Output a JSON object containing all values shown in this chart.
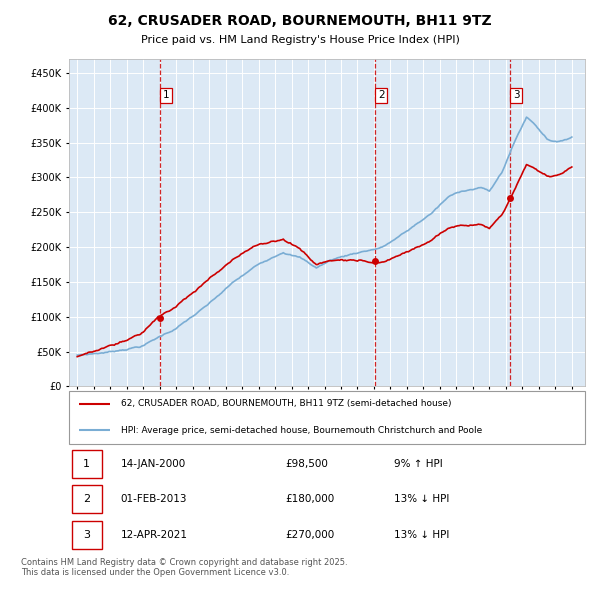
{
  "title": "62, CRUSADER ROAD, BOURNEMOUTH, BH11 9TZ",
  "subtitle": "Price paid vs. HM Land Registry's House Price Index (HPI)",
  "background_color": "#ffffff",
  "plot_bg_color": "#dce9f5",
  "grid_color": "#ffffff",
  "sale_dates_num": [
    2000.04,
    2013.08,
    2021.28
  ],
  "sale_prices": [
    98500,
    180000,
    270000
  ],
  "sale_labels": [
    "1",
    "2",
    "3"
  ],
  "sale_date_strings": [
    "14-JAN-2000",
    "01-FEB-2013",
    "12-APR-2021"
  ],
  "sale_price_strings": [
    "£98,500",
    "£180,000",
    "£270,000"
  ],
  "sale_hpi_strings": [
    "9% ↑ HPI",
    "13% ↓ HPI",
    "13% ↓ HPI"
  ],
  "hpi_line_color": "#7aadd4",
  "price_line_color": "#cc0000",
  "sale_marker_color": "#cc0000",
  "vline_color": "#cc0000",
  "legend1_label": "62, CRUSADER ROAD, BOURNEMOUTH, BH11 9TZ (semi-detached house)",
  "legend2_label": "HPI: Average price, semi-detached house, Bournemouth Christchurch and Poole",
  "footer": "Contains HM Land Registry data © Crown copyright and database right 2025.\nThis data is licensed under the Open Government Licence v3.0.",
  "ylim": [
    0,
    470000
  ],
  "yticks": [
    0,
    50000,
    100000,
    150000,
    200000,
    250000,
    300000,
    350000,
    400000,
    450000
  ],
  "xlim_start": 1994.5,
  "xlim_end": 2025.8,
  "xticks": [
    1995,
    1996,
    1997,
    1998,
    1999,
    2000,
    2001,
    2002,
    2003,
    2004,
    2005,
    2006,
    2007,
    2008,
    2009,
    2010,
    2011,
    2012,
    2013,
    2014,
    2015,
    2016,
    2017,
    2018,
    2019,
    2020,
    2021,
    2022,
    2023,
    2024,
    2025
  ],
  "hpi_data_years": [
    1995.0,
    1995.083,
    1995.167,
    1995.25,
    1995.333,
    1995.417,
    1995.5,
    1995.583,
    1995.667,
    1995.75,
    1995.833,
    1995.917,
    1996.0,
    1996.083,
    1996.167,
    1996.25,
    1996.333,
    1996.417,
    1996.5,
    1996.583,
    1996.667,
    1996.75,
    1996.833,
    1996.917,
    1997.0,
    1997.083,
    1997.167,
    1997.25,
    1997.333,
    1997.417,
    1997.5,
    1997.583,
    1997.667,
    1997.75,
    1997.833,
    1997.917,
    1998.0,
    1998.083,
    1998.167,
    1998.25,
    1998.333,
    1998.417,
    1998.5,
    1998.583,
    1998.667,
    1998.75,
    1998.833,
    1998.917,
    1999.0,
    1999.083,
    1999.167,
    1999.25,
    1999.333,
    1999.417,
    1999.5,
    1999.583,
    1999.667,
    1999.75,
    1999.833,
    1999.917,
    2000.0,
    2000.083,
    2000.167,
    2000.25,
    2000.333,
    2000.417,
    2000.5,
    2000.583,
    2000.667,
    2000.75,
    2000.833,
    2000.917,
    2001.0,
    2001.083,
    2001.167,
    2001.25,
    2001.333,
    2001.417,
    2001.5,
    2001.583,
    2001.667,
    2001.75,
    2001.833,
    2001.917,
    2002.0,
    2002.083,
    2002.167,
    2002.25,
    2002.333,
    2002.417,
    2002.5,
    2002.583,
    2002.667,
    2002.75,
    2002.833,
    2002.917,
    2003.0,
    2003.083,
    2003.167,
    2003.25,
    2003.333,
    2003.417,
    2003.5,
    2003.583,
    2003.667,
    2003.75,
    2003.833,
    2003.917,
    2004.0,
    2004.083,
    2004.167,
    2004.25,
    2004.333,
    2004.417,
    2004.5,
    2004.583,
    2004.667,
    2004.75,
    2004.833,
    2004.917,
    2005.0,
    2005.083,
    2005.167,
    2005.25,
    2005.333,
    2005.417,
    2005.5,
    2005.583,
    2005.667,
    2005.75,
    2005.833,
    2005.917,
    2006.0,
    2006.083,
    2006.167,
    2006.25,
    2006.333,
    2006.417,
    2006.5,
    2006.583,
    2006.667,
    2006.75,
    2006.833,
    2006.917,
    2007.0,
    2007.083,
    2007.167,
    2007.25,
    2007.333,
    2007.417,
    2007.5,
    2007.583,
    2007.667,
    2007.75,
    2007.833,
    2007.917,
    2008.0,
    2008.083,
    2008.167,
    2008.25,
    2008.333,
    2008.417,
    2008.5,
    2008.583,
    2008.667,
    2008.75,
    2008.833,
    2008.917,
    2009.0,
    2009.083,
    2009.167,
    2009.25,
    2009.333,
    2009.417,
    2009.5,
    2009.583,
    2009.667,
    2009.75,
    2009.833,
    2009.917,
    2010.0,
    2010.083,
    2010.167,
    2010.25,
    2010.333,
    2010.417,
    2010.5,
    2010.583,
    2010.667,
    2010.75,
    2010.833,
    2010.917,
    2011.0,
    2011.083,
    2011.167,
    2011.25,
    2011.333,
    2011.417,
    2011.5,
    2011.583,
    2011.667,
    2011.75,
    2011.833,
    2011.917,
    2012.0,
    2012.083,
    2012.167,
    2012.25,
    2012.333,
    2012.417,
    2012.5,
    2012.583,
    2012.667,
    2012.75,
    2012.833,
    2012.917,
    2013.0,
    2013.083,
    2013.167,
    2013.25,
    2013.333,
    2013.417,
    2013.5,
    2013.583,
    2013.667,
    2013.75,
    2013.833,
    2013.917,
    2014.0,
    2014.083,
    2014.167,
    2014.25,
    2014.333,
    2014.417,
    2014.5,
    2014.583,
    2014.667,
    2014.75,
    2014.833,
    2014.917,
    2015.0,
    2015.083,
    2015.167,
    2015.25,
    2015.333,
    2015.417,
    2015.5,
    2015.583,
    2015.667,
    2015.75,
    2015.833,
    2015.917,
    2016.0,
    2016.083,
    2016.167,
    2016.25,
    2016.333,
    2016.417,
    2016.5,
    2016.583,
    2016.667,
    2016.75,
    2016.833,
    2016.917,
    2017.0,
    2017.083,
    2017.167,
    2017.25,
    2017.333,
    2017.417,
    2017.5,
    2017.583,
    2017.667,
    2017.75,
    2017.833,
    2017.917,
    2018.0,
    2018.083,
    2018.167,
    2018.25,
    2018.333,
    2018.417,
    2018.5,
    2018.583,
    2018.667,
    2018.75,
    2018.833,
    2018.917,
    2019.0,
    2019.083,
    2019.167,
    2019.25,
    2019.333,
    2019.417,
    2019.5,
    2019.583,
    2019.667,
    2019.75,
    2019.833,
    2019.917,
    2020.0,
    2020.083,
    2020.167,
    2020.25,
    2020.333,
    2020.417,
    2020.5,
    2020.583,
    2020.667,
    2020.75,
    2020.833,
    2020.917,
    2021.0,
    2021.083,
    2021.167,
    2021.25,
    2021.333,
    2021.417,
    2021.5,
    2021.583,
    2021.667,
    2021.75,
    2021.833,
    2021.917,
    2022.0,
    2022.083,
    2022.167,
    2022.25,
    2022.333,
    2022.417,
    2022.5,
    2022.583,
    2022.667,
    2022.75,
    2022.833,
    2022.917,
    2023.0,
    2023.083,
    2023.167,
    2023.25,
    2023.333,
    2023.417,
    2023.5,
    2023.583,
    2023.667,
    2023.75,
    2023.833,
    2023.917,
    2024.0,
    2024.083,
    2024.167,
    2024.25,
    2024.333,
    2024.417,
    2024.5,
    2024.583,
    2024.667,
    2024.75,
    2024.833,
    2024.917,
    2025.0
  ]
}
